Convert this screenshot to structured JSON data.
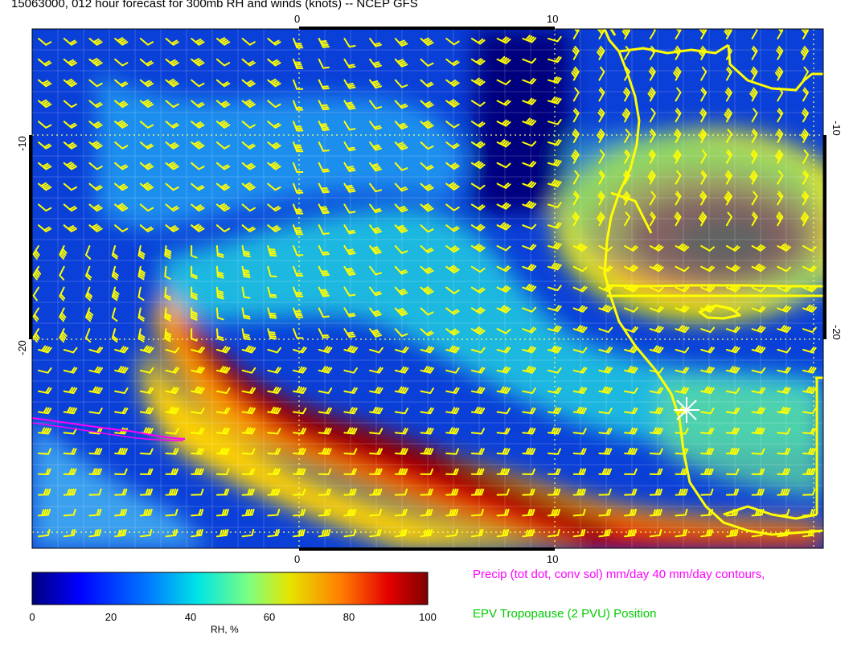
{
  "title": "15063000, 012 hour forecast for 300mb RH and winds (knots) -- NCEP GFS",
  "map": {
    "top_ticks": [
      "0",
      "10"
    ],
    "bottom_ticks": [
      "0",
      "10"
    ],
    "left_ticks": [
      "-10",
      "-20"
    ],
    "right_ticks": [
      "-10",
      "-20"
    ],
    "wind_barb_color": "#ffff00",
    "coastline_color": "#ffff00",
    "precip_contour_color": "#ff00ff"
  },
  "colorbar": {
    "label": "RH, %",
    "ticks": [
      "0",
      "20",
      "40",
      "60",
      "80",
      "100"
    ],
    "colors": [
      "#00007f",
      "#0000ff",
      "#007fff",
      "#00e5e5",
      "#7fff7f",
      "#e5e500",
      "#ff7f00",
      "#e50000",
      "#7f0000"
    ]
  },
  "legend": {
    "precip": "Precip (tot dot, conv sol) mm/day 40 mm/day contours,",
    "epv": "EPV Tropopause (2 PVU) Position"
  }
}
